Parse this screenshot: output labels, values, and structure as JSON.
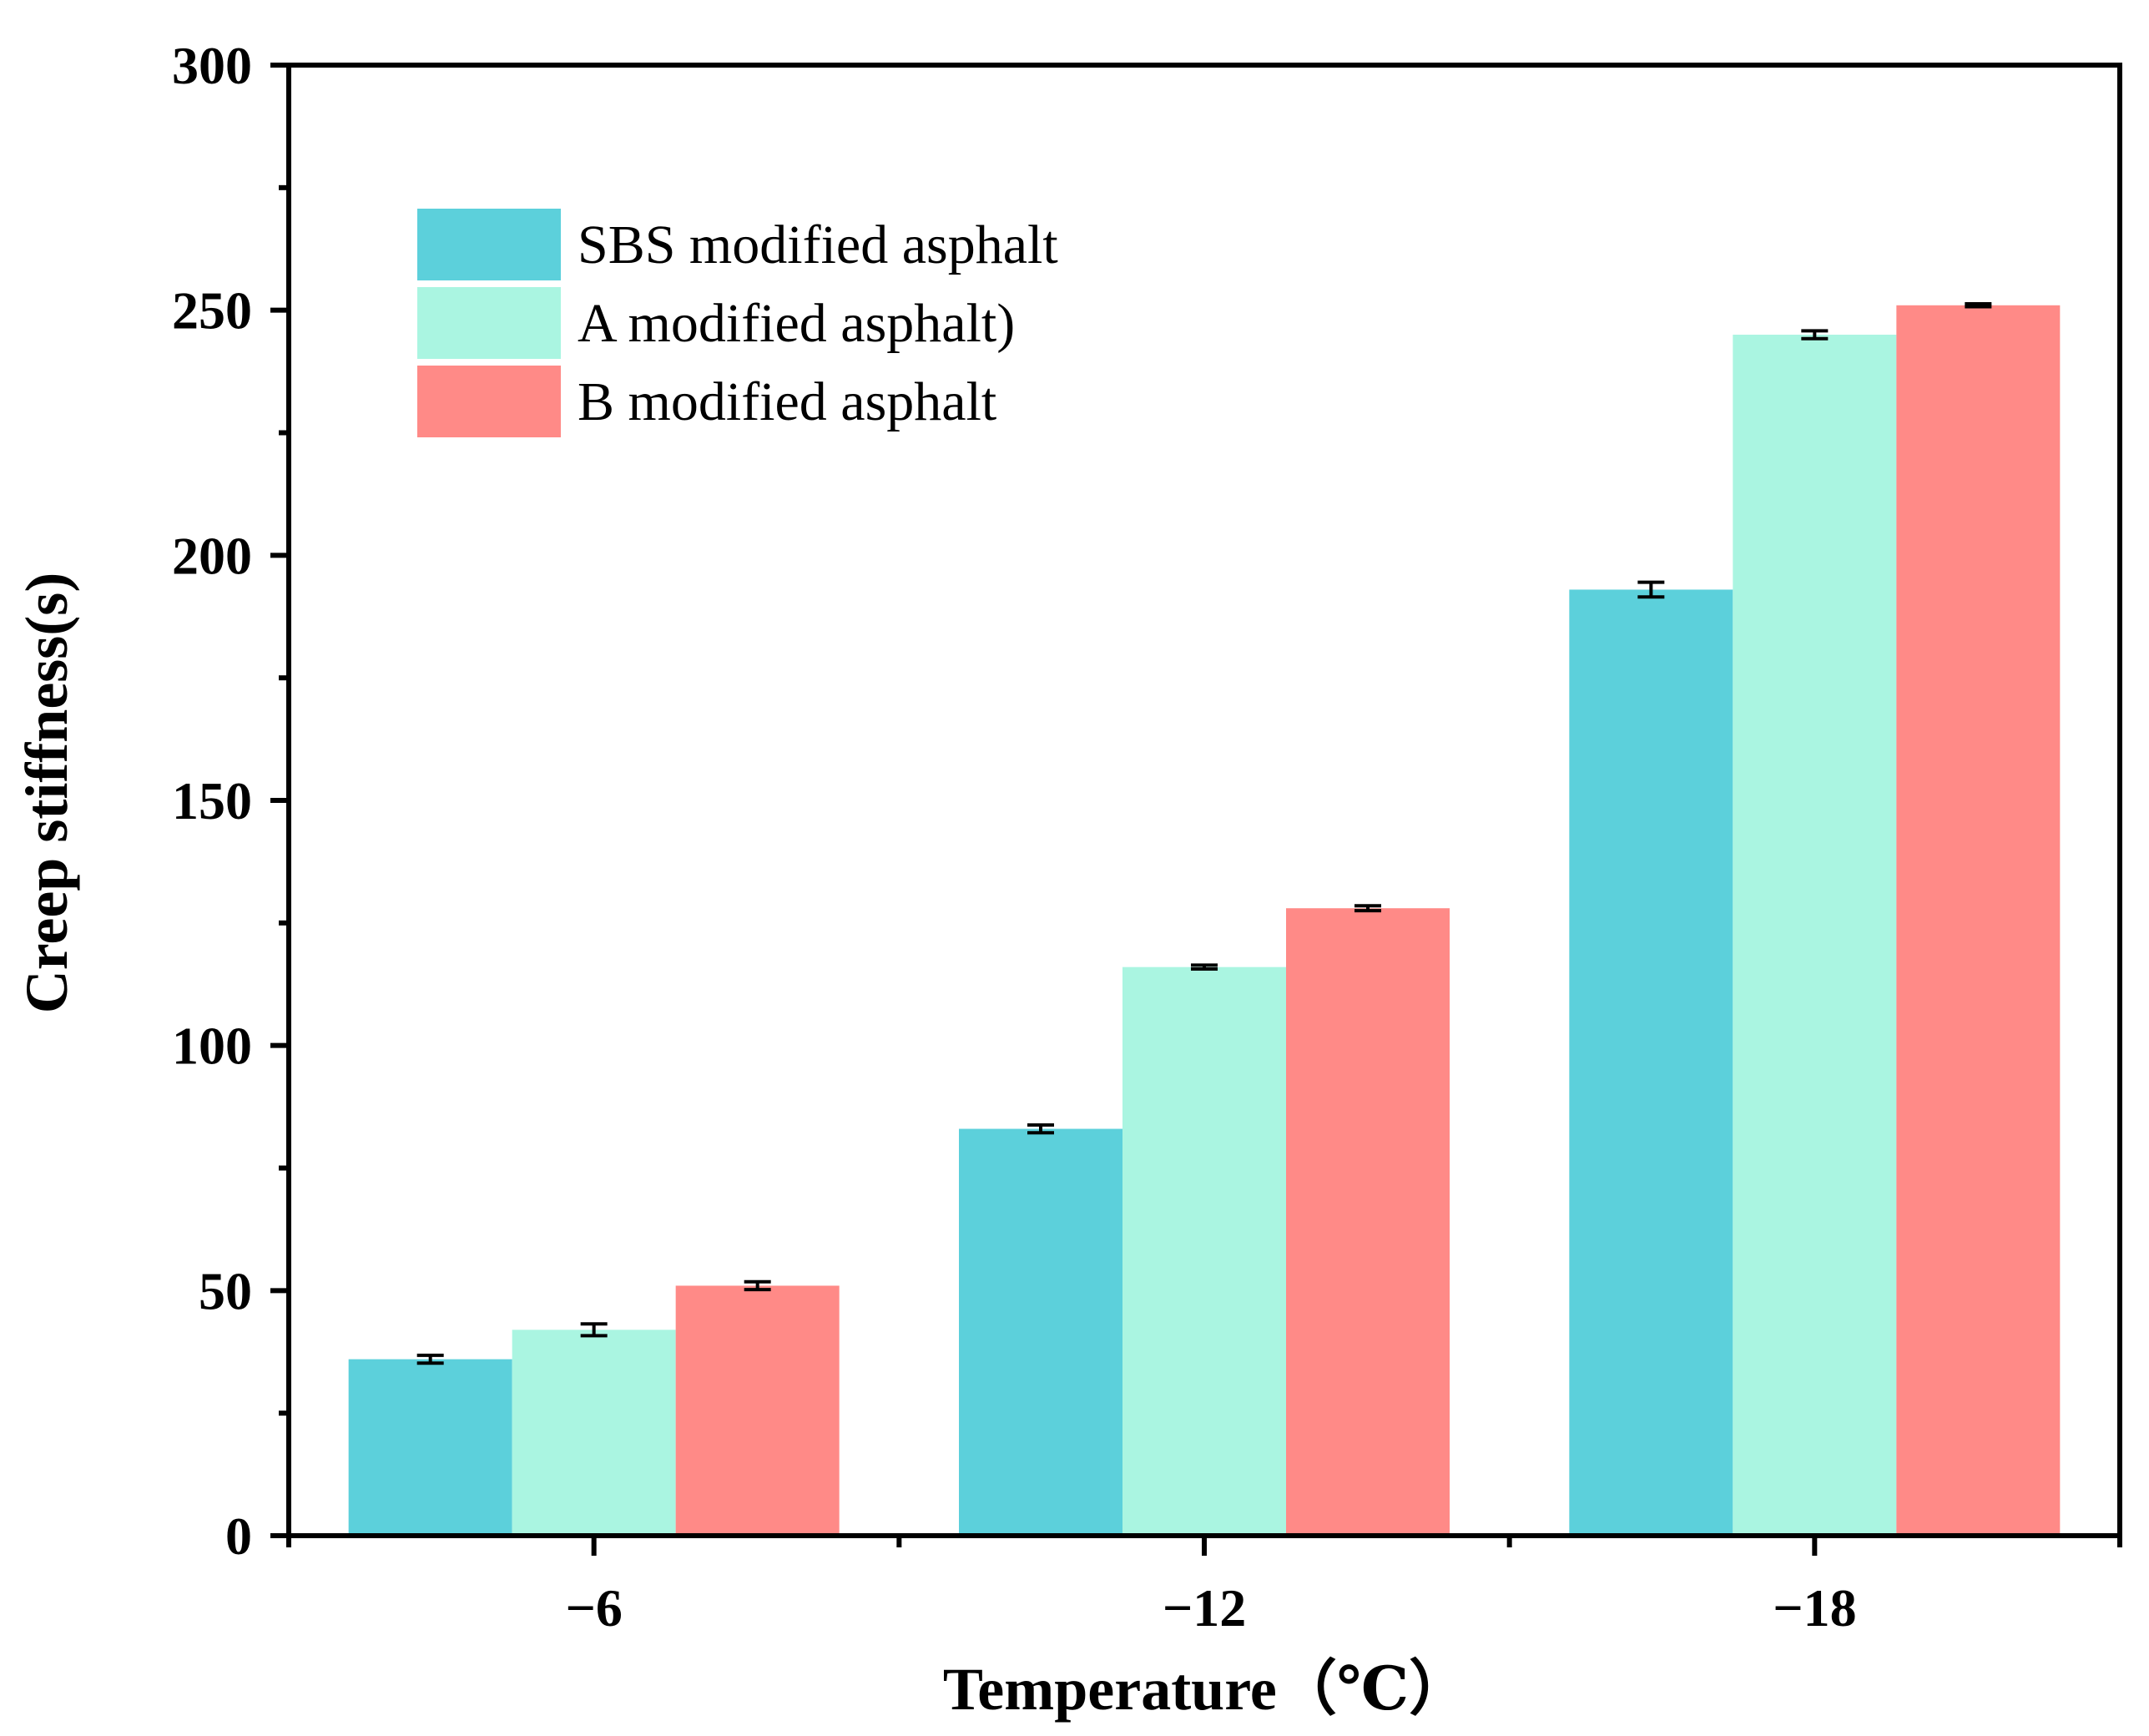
{
  "chart_data": {
    "type": "bar",
    "title": "",
    "xlabel": "Temperature（℃）",
    "ylabel": "Creep stiffness(s)",
    "ylim": [
      0,
      300
    ],
    "yticks": [
      0,
      50,
      100,
      150,
      200,
      250,
      300
    ],
    "categories": [
      "−6",
      "−12",
      "−18"
    ],
    "legend_position": "top-left",
    "grid": false,
    "series": [
      {
        "name": "SBS modified asphalt",
        "color": "#5CD0DB",
        "values": [
          36,
          83,
          193
        ],
        "errors": [
          0.8,
          0.8,
          1.5
        ]
      },
      {
        "name": "A modified asphalt)",
        "color": "#AAF5E1",
        "values": [
          42,
          116,
          245
        ],
        "errors": [
          1.2,
          0.4,
          0.8
        ]
      },
      {
        "name": "B modified asphalt",
        "color": "#FF8A87",
        "values": [
          51,
          128,
          251
        ],
        "errors": [
          0.8,
          0.5,
          0.3
        ]
      }
    ]
  }
}
